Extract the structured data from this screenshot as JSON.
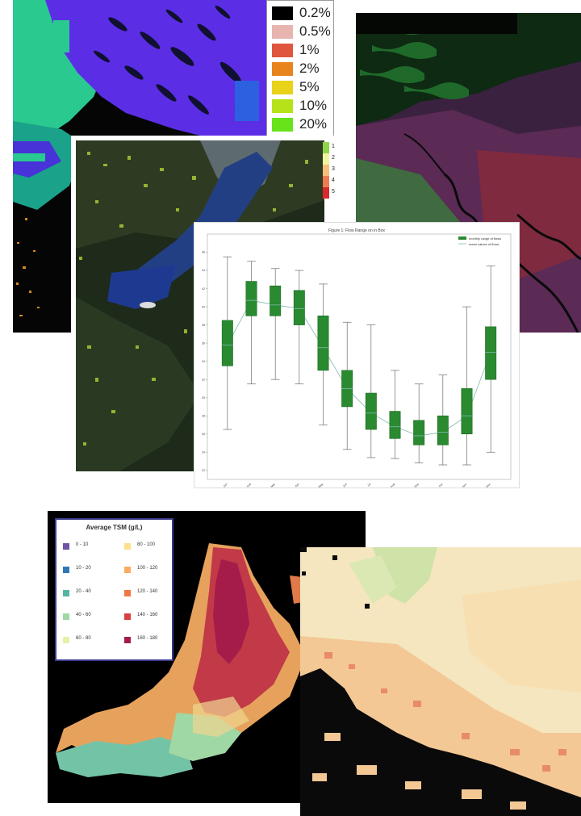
{
  "flood_legend": {
    "items": [
      {
        "label": "0.2%",
        "color": "#000000"
      },
      {
        "label": "0.5%",
        "color": "#e8b4b0"
      },
      {
        "label": "1%",
        "color": "#e0553e"
      },
      {
        "label": "2%",
        "color": "#e8841e"
      },
      {
        "label": "5%",
        "color": "#e8d21a"
      },
      {
        "label": "10%",
        "color": "#b6e21a"
      },
      {
        "label": "20%",
        "color": "#68e21a"
      }
    ]
  },
  "class_scale": {
    "labels": [
      "1",
      "2",
      "3",
      "4",
      "5"
    ],
    "colors": [
      "#8fd44a",
      "#f3f3a0",
      "#f4c07a",
      "#ee7b52",
      "#d92a2a"
    ]
  },
  "chart_data": {
    "type": "box",
    "title": "Figure 1: Flow Range on in Box",
    "legend": [
      "monthly range of flows",
      "mean values of flows"
    ],
    "categories": [
      "Jan",
      "Feb",
      "Mar",
      "Apr",
      "May",
      "Jun",
      "Jul",
      "Aug",
      "Sep",
      "Oct",
      "Nov",
      "Dec"
    ],
    "series": [
      {
        "values": [
          {
            "min": 26.5,
            "q1": 33.5,
            "median": 35.8,
            "q3": 38.5,
            "max": 45.5
          },
          {
            "min": 31.5,
            "q1": 39.0,
            "median": 40.7,
            "q3": 42.8,
            "max": 45.0
          },
          {
            "min": 32.0,
            "q1": 39.0,
            "median": 40.2,
            "q3": 42.3,
            "max": 44.2
          },
          {
            "min": 31.5,
            "q1": 38.0,
            "median": 39.8,
            "q3": 41.8,
            "max": 44.0
          },
          {
            "min": 27.0,
            "q1": 33.0,
            "median": 35.5,
            "q3": 39.0,
            "max": 42.5
          },
          {
            "min": 24.3,
            "q1": 29.0,
            "median": 31.0,
            "q3": 33.0,
            "max": 38.3
          },
          {
            "min": 23.4,
            "q1": 26.5,
            "median": 28.3,
            "q3": 30.5,
            "max": 38.0
          },
          {
            "min": 23.3,
            "q1": 25.5,
            "median": 26.8,
            "q3": 28.5,
            "max": 33.0
          },
          {
            "min": 22.8,
            "q1": 24.8,
            "median": 25.8,
            "q3": 27.5,
            "max": 31.5
          },
          {
            "min": 22.6,
            "q1": 24.8,
            "median": 26.2,
            "q3": 28.0,
            "max": 32.5
          },
          {
            "min": 22.6,
            "q1": 26.0,
            "median": 28.0,
            "q3": 31.0,
            "max": 40.0
          },
          {
            "min": 24.0,
            "q1": 32.0,
            "median": 35.0,
            "q3": 37.8,
            "max": 44.5
          }
        ]
      }
    ],
    "ylim": [
      21,
      48
    ],
    "grid": false,
    "legend_position": "top-right"
  },
  "tsm_legend": {
    "title": "Average TSM (g/L)",
    "left": [
      {
        "label": "0 - 10",
        "color": "#6f55a8"
      },
      {
        "label": "10 - 20",
        "color": "#2f78b8"
      },
      {
        "label": "20 - 40",
        "color": "#53b7a0"
      },
      {
        "label": "40 - 60",
        "color": "#9fd8a4"
      },
      {
        "label": "60 - 80",
        "color": "#e8f0a6"
      }
    ],
    "right": [
      {
        "label": "80 - 100",
        "color": "#fce08e"
      },
      {
        "label": "100 - 120",
        "color": "#f9ab63"
      },
      {
        "label": "120 - 140",
        "color": "#f07744"
      },
      {
        "label": "140 - 160",
        "color": "#d94042"
      },
      {
        "label": "160 - 180",
        "color": "#a51c4b"
      }
    ]
  }
}
